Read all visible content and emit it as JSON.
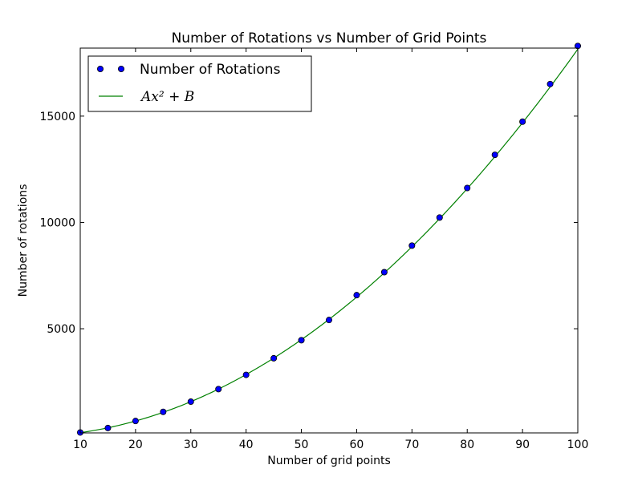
{
  "chart_data": {
    "type": "scatter",
    "title": "Number of Rotations vs Number of Grid Points",
    "xlabel": "Number of grid points",
    "ylabel": "Number of rotations",
    "xlim": [
      10,
      100
    ],
    "ylim": [
      100,
      18200
    ],
    "xticks": [
      "10",
      "20",
      "30",
      "40",
      "50",
      "60",
      "70",
      "80",
      "90",
      "100"
    ],
    "yticks": [
      "5000",
      "10000",
      "15000"
    ],
    "grid": false,
    "legend_position": "top-left",
    "series": [
      {
        "name": "Number of Rotations",
        "kind": "markers",
        "color": "#0000ff",
        "x": [
          10,
          15,
          20,
          25,
          30,
          35,
          40,
          45,
          50,
          55,
          60,
          65,
          70,
          75,
          80,
          85,
          90,
          95,
          100
        ],
        "y": [
          120,
          330,
          660,
          1090,
          1570,
          2160,
          2830,
          3610,
          4460,
          5410,
          6580,
          7660,
          8910,
          10230,
          11620,
          13180,
          14740,
          16510,
          18300
        ]
      },
      {
        "name": "Ax² + B",
        "kind": "line",
        "color": "#008000",
        "A": 1.822,
        "B": -70
      }
    ]
  }
}
